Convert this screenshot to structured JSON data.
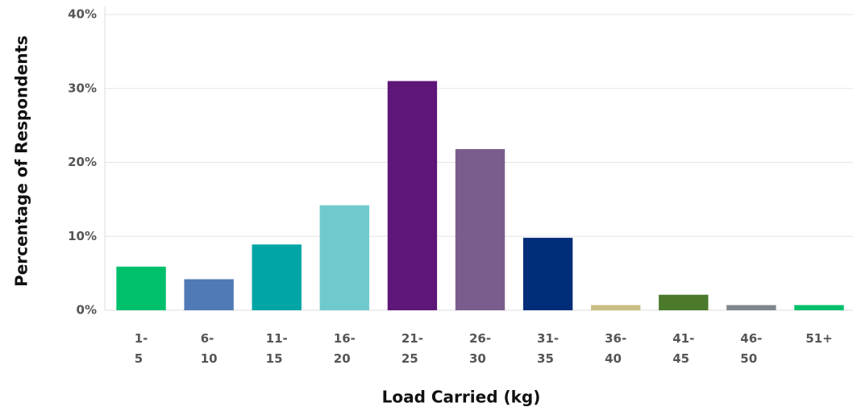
{
  "chart_data": {
    "type": "bar",
    "y_label": "Percentage of Respondents",
    "x_label": "Load Carried (kg)",
    "categories": [
      "1-5",
      "6-10",
      "11-15",
      "16-20",
      "21-25",
      "26-30",
      "31-35",
      "36-40",
      "41-45",
      "46-50",
      "51+"
    ],
    "values": [
      5.9,
      4.2,
      8.9,
      14.2,
      31.0,
      21.8,
      9.8,
      0.7,
      2.1,
      0.7,
      0.7
    ],
    "colors": [
      "#00c06b",
      "#4f7ab6",
      "#00a5a5",
      "#6ecacd",
      "#5e1778",
      "#7b5d8d",
      "#002d7a",
      "#cbbf85",
      "#4a7a2a",
      "#7f878c",
      "#00c06b"
    ],
    "ylim": [
      0,
      40
    ],
    "yticks": [
      {
        "value": 0,
        "label": "0%"
      },
      {
        "value": 10,
        "label": "10%"
      },
      {
        "value": 20,
        "label": "20%"
      },
      {
        "value": 30,
        "label": "30%"
      },
      {
        "value": 40,
        "label": "40%"
      }
    ],
    "grid": true
  }
}
